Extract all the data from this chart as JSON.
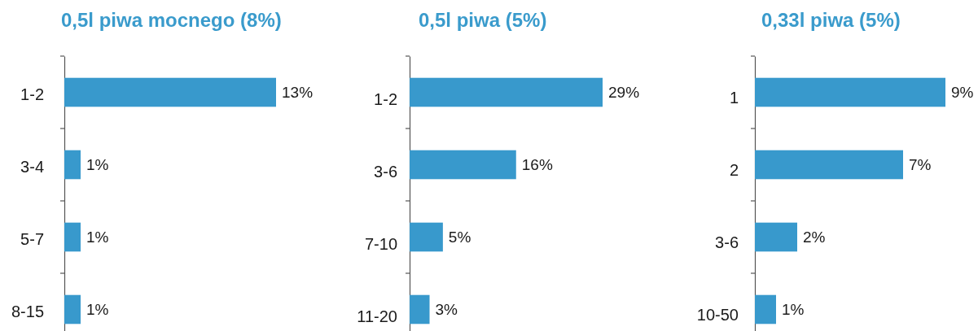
{
  "chart_data": [
    {
      "type": "bar",
      "orientation": "horizontal",
      "title": "0,5l piwa mocnego (8%)",
      "categories": [
        "1-2",
        "3-4",
        "5-7",
        "8-15"
      ],
      "values": [
        13,
        1,
        1,
        1
      ],
      "value_labels": [
        "13%",
        "1%",
        "1%",
        "1%"
      ],
      "color": "#3899cc"
    },
    {
      "type": "bar",
      "orientation": "horizontal",
      "title": "0,5l piwa (5%)",
      "categories": [
        "1-2",
        "3-6",
        "7-10",
        "11-20"
      ],
      "values": [
        29,
        16,
        5,
        3
      ],
      "value_labels": [
        "29%",
        "16%",
        "5%",
        "3%"
      ],
      "color": "#3899cc"
    },
    {
      "type": "bar",
      "orientation": "horizontal",
      "title": "0,33l piwa (5%)",
      "categories": [
        "1",
        "2",
        "3-6",
        "10-50"
      ],
      "values": [
        9,
        7,
        2,
        1
      ],
      "value_labels": [
        "9%",
        "7%",
        "2%",
        "1%"
      ],
      "color": "#3899cc"
    }
  ]
}
